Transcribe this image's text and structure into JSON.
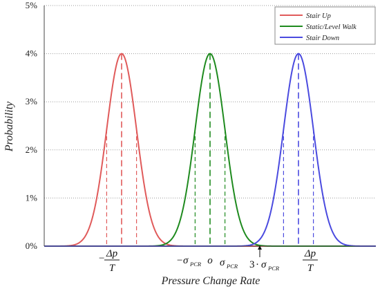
{
  "chart_data": {
    "type": "line",
    "xlabel": "Pressure Change Rate",
    "ylabel": "Probability",
    "ylim": [
      0,
      5
    ],
    "xlim": [
      -3.0,
      3.0
    ],
    "yticks": [
      "0%",
      "1%",
      "2%",
      "3%",
      "4%",
      "5%"
    ],
    "grid": "horizontal dotted",
    "legend_position": "top-right",
    "series": [
      {
        "name": "Stair Up",
        "color": "#e05a5a",
        "mean": -1.6,
        "sigma": 0.27,
        "peak": 4.0
      },
      {
        "name": "Static/Level Walk",
        "color": "#1e8a1e",
        "mean": 0.0,
        "sigma": 0.27,
        "peak": 4.0
      },
      {
        "name": "Stair Down",
        "color": "#4a4adf",
        "mean": 1.6,
        "sigma": 0.27,
        "peak": 4.0
      }
    ],
    "x_annotations": {
      "neg_delta_p_over_t": {
        "num": "Δp",
        "den": "T",
        "sign": "−"
      },
      "neg_sigma": {
        "sigma": "σ",
        "sub": "PCR",
        "sign": "−"
      },
      "origin": "o",
      "pos_sigma": {
        "sigma": "σ",
        "sub": "PCR"
      },
      "three_sigma": {
        "coef": "3",
        "dot": "·",
        "sigma": "σ",
        "sub": "PCR"
      },
      "pos_delta_p_over_t": {
        "num": "Δp",
        "den": "T"
      }
    }
  }
}
